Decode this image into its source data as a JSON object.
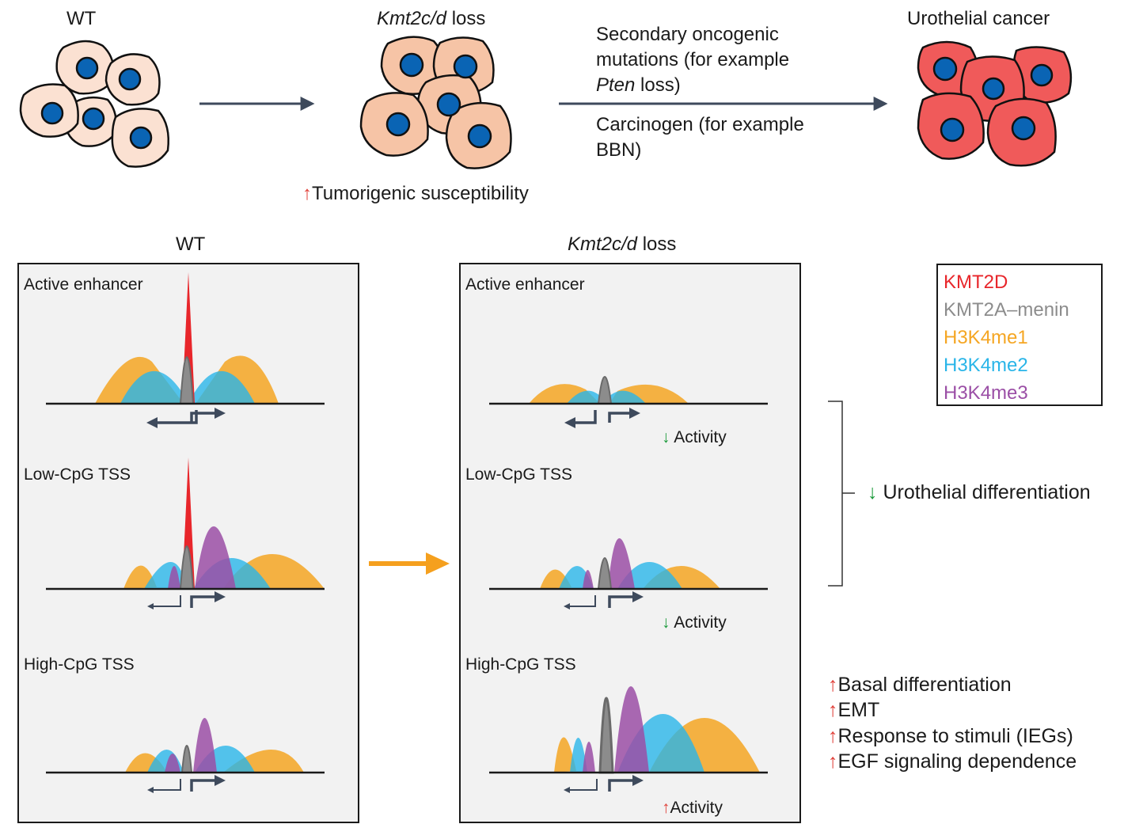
{
  "top": {
    "wt_label": "WT",
    "loss_label_italic": "Kmt2c/d",
    "loss_label_rest": " loss",
    "susceptibility": "Tumorigenic susceptibility",
    "secondary_line1": "Secondary oncogenic",
    "secondary_line2": "mutations (for example",
    "secondary_line3_italic": "Pten",
    "secondary_line3_rest": " loss)",
    "carcinogen_line1": "Carcinogen (for example",
    "carcinogen_line2": "BBN)",
    "cancer_label": "Urothelial cancer"
  },
  "panels": {
    "wt_title": "WT",
    "loss_title_italic": "Kmt2c/d",
    "loss_title_rest": " loss",
    "rows": [
      "Active enhancer",
      "Low-CpG TSS",
      "High-CpG TSS"
    ],
    "activity_label": "Activity"
  },
  "legend": {
    "items": [
      {
        "label": "KMT2D",
        "color": "#e8262b"
      },
      {
        "label": "KMT2A–menin",
        "color": "#8c8c8c"
      },
      {
        "label": "H3K4me1",
        "color": "#f5a623"
      },
      {
        "label": "H3K4me2",
        "color": "#29b5e8"
      },
      {
        "label": "H3K4me3",
        "color": "#9b4fa6"
      }
    ]
  },
  "outcomes": {
    "urothelial": "Urothelial differentiation",
    "effects": [
      "Basal differentiation",
      "EMT",
      "Response to stimuli (IEGs)",
      "EGF signaling dependence"
    ]
  },
  "colors": {
    "wt_cell": "#fbe1d2",
    "loss_cell": "#f6c4a6",
    "cancer_cell": "#f05a5a",
    "nucleus": "#0a64b4",
    "arrow": "#3e4a5c",
    "orange_arrow": "#f5a01e"
  }
}
